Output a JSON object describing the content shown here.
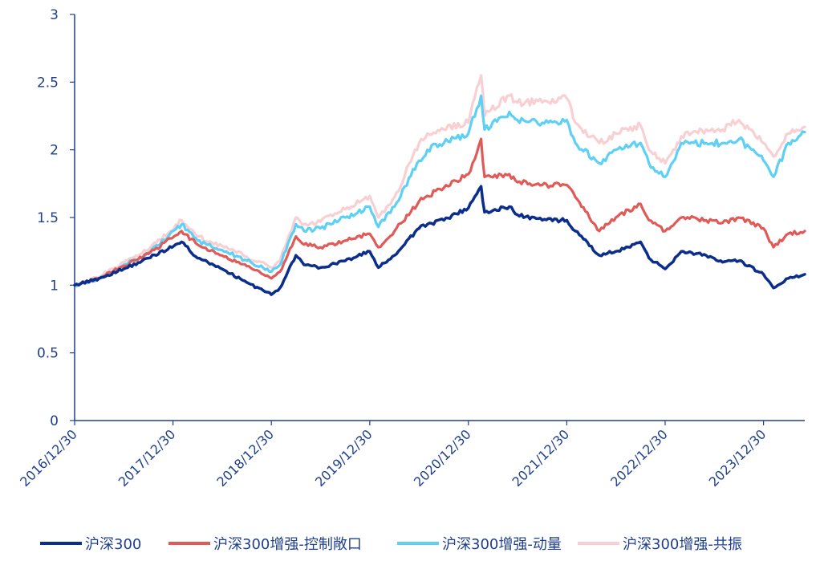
{
  "chart_data": {
    "type": "line",
    "title": "",
    "xlabel": "",
    "ylabel": "",
    "ylim": [
      0,
      3
    ],
    "yticks": [
      "0",
      "0.5",
      "1",
      "1.5",
      "2",
      "2.5",
      "3"
    ],
    "xticks": [
      "2016/12/30",
      "2017/12/30",
      "2018/12/30",
      "2019/12/30",
      "2020/12/30",
      "2021/12/30",
      "2022/12/30",
      "2023/12/30"
    ],
    "xrange": [
      "2016/12/30",
      "2024/05/31"
    ],
    "grid": false,
    "legend_position": "bottom",
    "x": [
      "2016/12/30",
      "2017/03/31",
      "2017/06/30",
      "2017/09/30",
      "2018/01/31",
      "2018/03/31",
      "2018/06/30",
      "2018/09/30",
      "2018/12/30",
      "2019/01/31",
      "2019/03/31",
      "2019/04/30",
      "2019/06/30",
      "2019/09/30",
      "2019/12/30",
      "2020/01/31",
      "2020/03/31",
      "2020/06/30",
      "2020/07/31",
      "2020/09/30",
      "2020/12/30",
      "2021/02/15",
      "2021/02/28",
      "2021/05/31",
      "2021/06/30",
      "2021/09/30",
      "2021/12/30",
      "2022/01/31",
      "2022/04/30",
      "2022/06/30",
      "2022/09/30",
      "2022/10/31",
      "2022/12/30",
      "2023/02/28",
      "2023/05/31",
      "2023/07/31",
      "2023/09/30",
      "2023/12/30",
      "2024/02/05",
      "2024/03/31",
      "2024/05/31"
    ],
    "series": [
      {
        "name": "沪深300",
        "color": "#0b2d8c",
        "values": [
          1.0,
          1.05,
          1.12,
          1.2,
          1.32,
          1.2,
          1.12,
          1.02,
          0.93,
          0.98,
          1.22,
          1.15,
          1.13,
          1.18,
          1.25,
          1.13,
          1.22,
          1.42,
          1.45,
          1.48,
          1.57,
          1.73,
          1.54,
          1.58,
          1.52,
          1.48,
          1.48,
          1.4,
          1.22,
          1.25,
          1.32,
          1.2,
          1.12,
          1.25,
          1.22,
          1.17,
          1.18,
          1.08,
          0.98,
          1.05,
          1.08
        ]
      },
      {
        "name": "沪深300增强-控制敞口",
        "color": "#e05a57",
        "values": [
          1.0,
          1.05,
          1.14,
          1.23,
          1.4,
          1.3,
          1.22,
          1.14,
          1.05,
          1.1,
          1.36,
          1.3,
          1.28,
          1.33,
          1.38,
          1.28,
          1.4,
          1.62,
          1.66,
          1.72,
          1.82,
          2.08,
          1.8,
          1.82,
          1.76,
          1.74,
          1.74,
          1.65,
          1.4,
          1.5,
          1.6,
          1.48,
          1.4,
          1.5,
          1.48,
          1.46,
          1.5,
          1.42,
          1.28,
          1.38,
          1.4
        ]
      },
      {
        "name": "沪深300增强-动量",
        "color": "#5ed0f5",
        "values": [
          1.0,
          1.05,
          1.15,
          1.24,
          1.45,
          1.33,
          1.26,
          1.18,
          1.1,
          1.15,
          1.45,
          1.4,
          1.42,
          1.5,
          1.58,
          1.43,
          1.58,
          1.92,
          2.0,
          2.05,
          2.12,
          2.4,
          2.15,
          2.28,
          2.22,
          2.2,
          2.22,
          2.05,
          1.9,
          2.0,
          2.05,
          1.9,
          1.8,
          2.05,
          2.05,
          2.05,
          2.08,
          1.92,
          1.8,
          2.05,
          2.13
        ]
      },
      {
        "name": "沪深300增强-共振",
        "color": "#f8cfd3",
        "values": [
          1.0,
          1.06,
          1.17,
          1.26,
          1.48,
          1.36,
          1.29,
          1.21,
          1.13,
          1.18,
          1.5,
          1.45,
          1.47,
          1.56,
          1.66,
          1.5,
          1.65,
          2.05,
          2.12,
          2.15,
          2.2,
          2.55,
          2.25,
          2.4,
          2.35,
          2.35,
          2.38,
          2.2,
          2.05,
          2.12,
          2.18,
          2.0,
          1.9,
          2.1,
          2.15,
          2.15,
          2.22,
          2.05,
          1.95,
          2.12,
          2.17
        ]
      }
    ]
  }
}
